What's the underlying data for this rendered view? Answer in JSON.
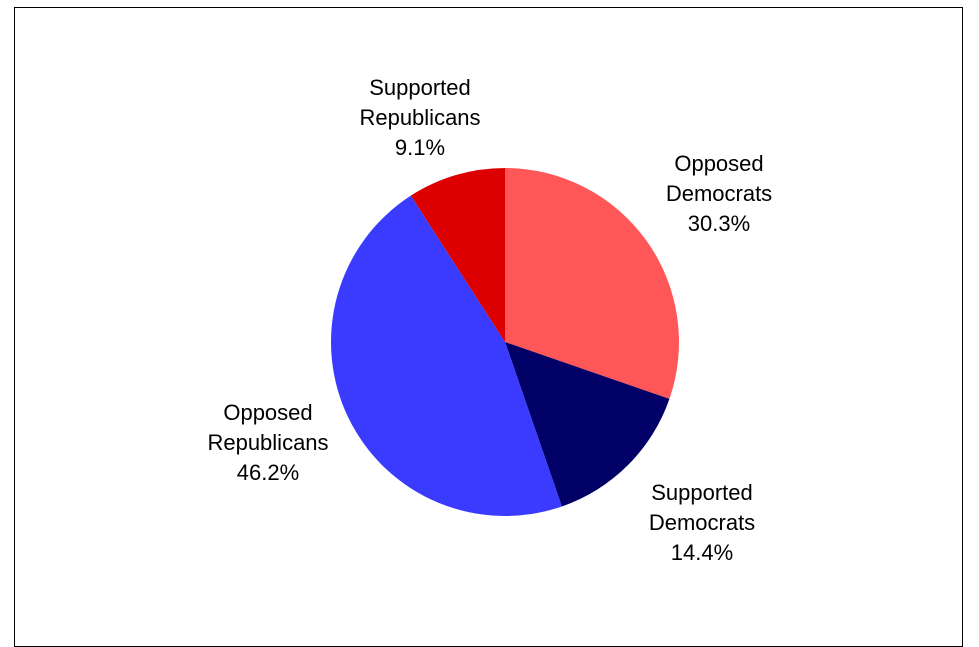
{
  "chart_data": {
    "type": "pie",
    "slices": [
      {
        "line1": "Opposed",
        "line2": "Democrats",
        "value": 30.3,
        "display": "30.3%",
        "color": "#FF5757"
      },
      {
        "line1": "Supported",
        "line2": "Democrats",
        "value": 14.4,
        "display": "14.4%",
        "color": "#000066"
      },
      {
        "line1": "Opposed",
        "line2": "Republicans",
        "value": 46.2,
        "display": "46.2%",
        "color": "#3B3BFF"
      },
      {
        "line1": "Supported",
        "line2": "Republicans",
        "value": 9.1,
        "display": "9.1%",
        "color": "#DD0000"
      }
    ],
    "start_angle_deg": 0,
    "direction": "clockwise",
    "legend": "none",
    "grid": false
  }
}
